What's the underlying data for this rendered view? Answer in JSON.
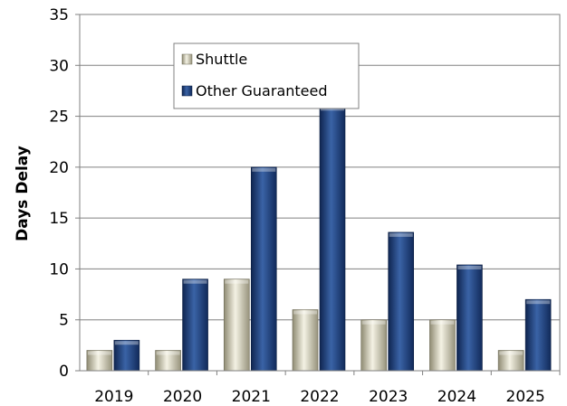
{
  "chart_data": {
    "type": "bar",
    "title": "",
    "xlabel": "",
    "ylabel": "Days Delay",
    "ylim": [
      0,
      35
    ],
    "yticks": [
      0,
      5,
      10,
      15,
      20,
      25,
      30,
      35
    ],
    "grid": true,
    "legend_position": "top-left",
    "categories": [
      "2019",
      "2020",
      "2021",
      "2022",
      "2023",
      "2024",
      "2025"
    ],
    "series": [
      {
        "name": "Shuttle",
        "color": "#d9d6c1",
        "values": [
          2,
          2,
          9,
          6,
          5,
          5,
          2
        ]
      },
      {
        "name": "Other Guaranteed",
        "color": "#1f3f7a",
        "values": [
          3,
          9,
          20,
          26,
          13.6,
          10.4,
          7
        ]
      }
    ]
  }
}
